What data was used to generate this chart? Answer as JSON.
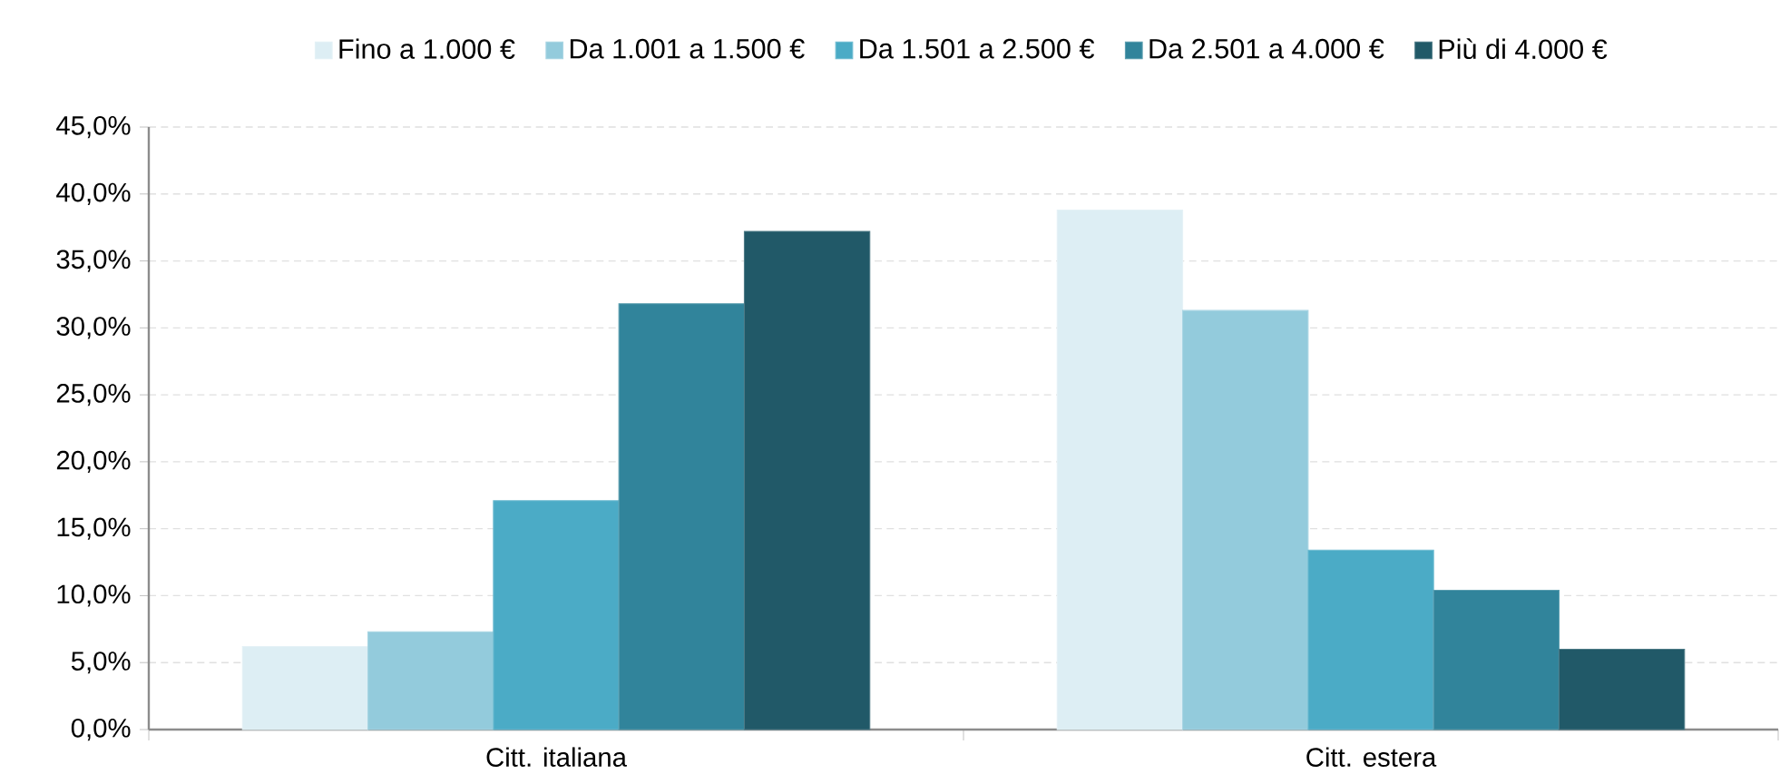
{
  "chart_data": {
    "type": "bar",
    "categories": [
      "Citt. italiana",
      "Citt. estera"
    ],
    "series": [
      {
        "name": "Fino a 1.000 €",
        "color": "#ddeef4",
        "values": [
          6.2,
          38.8
        ]
      },
      {
        "name": "Da 1.001 a 1.500 €",
        "color": "#93cbdc",
        "values": [
          7.3,
          31.3
        ]
      },
      {
        "name": "Da 1.501 a 2.500 €",
        "color": "#4babc6",
        "values": [
          17.1,
          13.4
        ]
      },
      {
        "name": "Da 2.501 a 4.000 €",
        "color": "#31849b",
        "values": [
          31.8,
          10.4
        ]
      },
      {
        "name": "Più di 4.000 €",
        "color": "#215968",
        "values": [
          37.2,
          6.0
        ]
      }
    ],
    "ylim": [
      0,
      45
    ],
    "yticks": [
      {
        "value": 0,
        "label": "0,0%"
      },
      {
        "value": 5,
        "label": "5,0%"
      },
      {
        "value": 10,
        "label": "10,0%"
      },
      {
        "value": 15,
        "label": "15,0%"
      },
      {
        "value": 20,
        "label": "20,0%"
      },
      {
        "value": 25,
        "label": "25,0%"
      },
      {
        "value": 30,
        "label": "30,0%"
      },
      {
        "value": 35,
        "label": "35,0%"
      },
      {
        "value": 40,
        "label": "40,0%"
      },
      {
        "value": 45,
        "label": "45,0%"
      }
    ],
    "grid": "y",
    "legend": "top"
  }
}
